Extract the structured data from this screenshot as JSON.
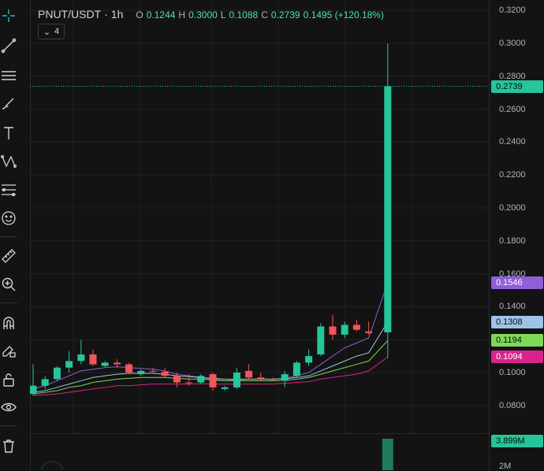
{
  "legend": {
    "symbol": "PNUT/USDT",
    "interval": "1h",
    "o_label": "O",
    "open": "0.1244",
    "h_label": "H",
    "high": "0.3000",
    "l_label": "L",
    "low": "0.1088",
    "c_label": "C",
    "close": "0.2739",
    "change": "0.1495 (+120.18%)",
    "indicator_count": "4"
  },
  "price_axis": {
    "ticks": [
      "0.3200",
      "0.3000",
      "0.2800",
      "0.2600",
      "0.2400",
      "0.2200",
      "0.2000",
      "0.1800",
      "0.1600",
      "0.1400",
      "0.1200",
      "0.1000",
      "0.0800"
    ],
    "badges": [
      {
        "label": "0.2739",
        "color": "#26c59a",
        "text_color": "#0b0b0b"
      },
      {
        "label": "0.1546",
        "color": "#8e5fd6",
        "text_color": "#ffffff"
      },
      {
        "label": "0.1308",
        "color": "#9ec3e8",
        "text_color": "#0b0b0b"
      },
      {
        "label": "0.1194",
        "color": "#7ed957",
        "text_color": "#0b0b0b"
      },
      {
        "label": "0.1094",
        "color": "#d6248a",
        "text_color": "#ffffff"
      }
    ],
    "volume_label": "3.899M",
    "volume_tick": "2M"
  },
  "colors": {
    "up": "#26c59a",
    "down": "#f2555a",
    "ma1": "#8e5fd6",
    "ma2": "#9ec3e8",
    "ma3": "#7ed957",
    "ma4": "#d6248a",
    "grid": "#222222"
  },
  "toolbar_icons": [
    "crosshair-icon",
    "trend-line-icon",
    "horizontal-lines-icon",
    "brush-icon",
    "text-icon",
    "pattern-icon",
    "fib-icon",
    "emoji-icon",
    "ruler-icon",
    "zoom-in-icon",
    "magnet-icon",
    "lock-draw-icon",
    "lock-icon",
    "eye-icon",
    "trash-icon"
  ],
  "chart_data": {
    "type": "candlestick",
    "y_range": [
      0.07,
      0.325
    ],
    "candles": [
      {
        "o": 0.087,
        "h": 0.105,
        "l": 0.086,
        "c": 0.092
      },
      {
        "o": 0.092,
        "h": 0.098,
        "l": 0.09,
        "c": 0.096
      },
      {
        "o": 0.096,
        "h": 0.104,
        "l": 0.095,
        "c": 0.103
      },
      {
        "o": 0.103,
        "h": 0.113,
        "l": 0.1,
        "c": 0.107
      },
      {
        "o": 0.107,
        "h": 0.12,
        "l": 0.105,
        "c": 0.111
      },
      {
        "o": 0.111,
        "h": 0.114,
        "l": 0.104,
        "c": 0.105
      },
      {
        "o": 0.104,
        "h": 0.107,
        "l": 0.103,
        "c": 0.106
      },
      {
        "o": 0.106,
        "h": 0.108,
        "l": 0.103,
        "c": 0.105
      },
      {
        "o": 0.105,
        "h": 0.106,
        "l": 0.099,
        "c": 0.1
      },
      {
        "o": 0.099,
        "h": 0.102,
        "l": 0.098,
        "c": 0.101
      },
      {
        "o": 0.101,
        "h": 0.103,
        "l": 0.1,
        "c": 0.1005
      },
      {
        "o": 0.1005,
        "h": 0.103,
        "l": 0.097,
        "c": 0.098
      },
      {
        "o": 0.098,
        "h": 0.1,
        "l": 0.091,
        "c": 0.094
      },
      {
        "o": 0.094,
        "h": 0.099,
        "l": 0.092,
        "c": 0.0935
      },
      {
        "o": 0.094,
        "h": 0.099,
        "l": 0.093,
        "c": 0.098
      },
      {
        "o": 0.099,
        "h": 0.1,
        "l": 0.089,
        "c": 0.091
      },
      {
        "o": 0.09,
        "h": 0.092,
        "l": 0.089,
        "c": 0.091
      },
      {
        "o": 0.091,
        "h": 0.103,
        "l": 0.09,
        "c": 0.1
      },
      {
        "o": 0.101,
        "h": 0.105,
        "l": 0.096,
        "c": 0.097
      },
      {
        "o": 0.097,
        "h": 0.1,
        "l": 0.095,
        "c": 0.096
      },
      {
        "o": 0.096,
        "h": 0.097,
        "l": 0.095,
        "c": 0.0955
      },
      {
        "o": 0.095,
        "h": 0.101,
        "l": 0.091,
        "c": 0.099
      },
      {
        "o": 0.098,
        "h": 0.107,
        "l": 0.097,
        "c": 0.106
      },
      {
        "o": 0.106,
        "h": 0.114,
        "l": 0.104,
        "c": 0.11
      },
      {
        "o": 0.111,
        "h": 0.13,
        "l": 0.11,
        "c": 0.128
      },
      {
        "o": 0.128,
        "h": 0.135,
        "l": 0.12,
        "c": 0.123
      },
      {
        "o": 0.123,
        "h": 0.131,
        "l": 0.121,
        "c": 0.129
      },
      {
        "o": 0.129,
        "h": 0.132,
        "l": 0.125,
        "c": 0.126
      },
      {
        "o": 0.125,
        "h": 0.131,
        "l": 0.123,
        "c": 0.124
      },
      {
        "o": 0.1244,
        "h": 0.3,
        "l": 0.1088,
        "c": 0.2739
      }
    ],
    "moving_averages": [
      {
        "color": "#8e5fd6",
        "values": [
          0.09,
          0.092,
          0.095,
          0.098,
          0.101,
          0.102,
          0.103,
          0.1035,
          0.103,
          0.1025,
          0.102,
          0.101,
          0.099,
          0.098,
          0.097,
          0.096,
          0.095,
          0.0955,
          0.096,
          0.096,
          0.096,
          0.0965,
          0.098,
          0.1,
          0.105,
          0.11,
          0.115,
          0.118,
          0.121,
          0.1546
        ]
      },
      {
        "color": "#9ec3e8",
        "values": [
          0.088,
          0.089,
          0.091,
          0.093,
          0.095,
          0.097,
          0.098,
          0.099,
          0.0995,
          0.0995,
          0.0995,
          0.099,
          0.098,
          0.0975,
          0.097,
          0.0965,
          0.096,
          0.096,
          0.096,
          0.096,
          0.096,
          0.0963,
          0.097,
          0.098,
          0.101,
          0.104,
          0.107,
          0.11,
          0.112,
          0.1308
        ]
      },
      {
        "color": "#7ed957",
        "values": [
          0.087,
          0.088,
          0.089,
          0.091,
          0.092,
          0.094,
          0.095,
          0.096,
          0.0965,
          0.097,
          0.097,
          0.097,
          0.0965,
          0.096,
          0.096,
          0.0955,
          0.095,
          0.095,
          0.095,
          0.095,
          0.095,
          0.0953,
          0.096,
          0.097,
          0.099,
          0.101,
          0.103,
          0.105,
          0.107,
          0.1194
        ]
      },
      {
        "color": "#d6248a",
        "values": [
          0.086,
          0.0865,
          0.087,
          0.088,
          0.089,
          0.09,
          0.091,
          0.092,
          0.092,
          0.0925,
          0.093,
          0.093,
          0.093,
          0.093,
          0.0932,
          0.093,
          0.093,
          0.093,
          0.093,
          0.093,
          0.093,
          0.0935,
          0.094,
          0.0945,
          0.096,
          0.097,
          0.098,
          0.099,
          0.101,
          0.1094
        ]
      }
    ],
    "volume": {
      "last_value": "3.899M",
      "bar_fraction": 0.85
    }
  }
}
